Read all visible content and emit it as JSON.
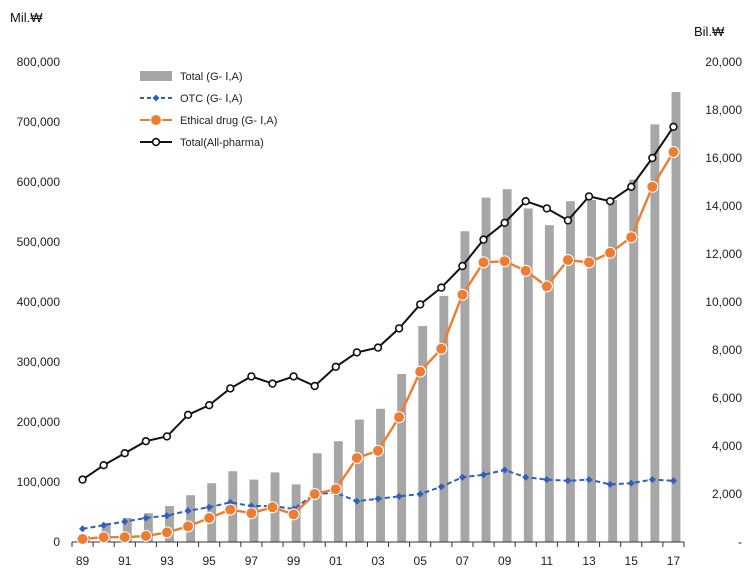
{
  "chart_data": {
    "type": "bar+line",
    "title": "",
    "left_unit": "Mil.₩",
    "right_unit": "Bil.₩",
    "x": [
      "89",
      "90",
      "91",
      "92",
      "93",
      "94",
      "95",
      "96",
      "97",
      "98",
      "99",
      "00",
      "01",
      "02",
      "03",
      "04",
      "05",
      "06",
      "07",
      "08",
      "09",
      "10",
      "11",
      "12",
      "13",
      "14",
      "15",
      "16",
      "17"
    ],
    "x_tick_labels": [
      "89",
      "91",
      "93",
      "95",
      "97",
      "99",
      "01",
      "03",
      "05",
      "07",
      "09",
      "11",
      "13",
      "15",
      "17"
    ],
    "y_left_range": [
      0,
      800000
    ],
    "y_left_ticks": [
      "0",
      "100,000",
      "200,000",
      "300,000",
      "400,000",
      "500,000",
      "600,000",
      "700,000",
      "800,000"
    ],
    "y_right_range": [
      0,
      20000
    ],
    "y_right_ticks": [
      "-",
      "2,000",
      "4,000",
      "6,000",
      "8,000",
      "10,000",
      "12,000",
      "14,000",
      "16,000",
      "18,000",
      "20,000"
    ],
    "legend_position": "top-left",
    "series": [
      {
        "name": "Total (G- Ⅰ,A)",
        "kind": "bar",
        "axis": "left",
        "color": "#a6a6a6",
        "values": [
          10000,
          32000,
          40000,
          48000,
          60000,
          78000,
          98000,
          118000,
          104000,
          116000,
          96000,
          148000,
          168000,
          204000,
          222000,
          280000,
          360000,
          410000,
          518000,
          574000,
          588000,
          556000,
          528000,
          568000,
          570000,
          570000,
          604000,
          696000,
          750000
        ]
      },
      {
        "name": "OTC (G- Ⅰ,A)",
        "kind": "line",
        "axis": "left",
        "color": "#2f5fbf",
        "dashed": true,
        "values": [
          22000,
          28000,
          34000,
          40000,
          44000,
          52000,
          58000,
          66000,
          60000,
          60000,
          55000,
          80000,
          82000,
          68000,
          72000,
          76000,
          80000,
          92000,
          108000,
          112000,
          120000,
          108000,
          104000,
          102000,
          104000,
          96000,
          98000,
          104000,
          102000
        ]
      },
      {
        "name": "Ethical drug (G- Ⅰ,A)",
        "kind": "line",
        "axis": "left",
        "color": "#ed7d31",
        "marker": "big-circle",
        "values": [
          5000,
          8000,
          8000,
          10000,
          16000,
          26000,
          40000,
          54000,
          48000,
          58000,
          46000,
          80000,
          88000,
          140000,
          152000,
          208000,
          284000,
          322000,
          412000,
          466000,
          468000,
          452000,
          426000,
          470000,
          466000,
          482000,
          508000,
          592000,
          650000
        ]
      },
      {
        "name": "Total(All-pharma)",
        "kind": "line",
        "axis": "right",
        "color": "#111111",
        "marker": "hollow-circle",
        "values": [
          2600,
          3200,
          3700,
          4200,
          4400,
          5300,
          5700,
          6400,
          6900,
          6600,
          6900,
          6500,
          7300,
          7900,
          8100,
          8900,
          9900,
          10600,
          11500,
          12600,
          13300,
          14200,
          13900,
          13400,
          14400,
          14200,
          14800,
          16000,
          17300
        ]
      }
    ]
  }
}
